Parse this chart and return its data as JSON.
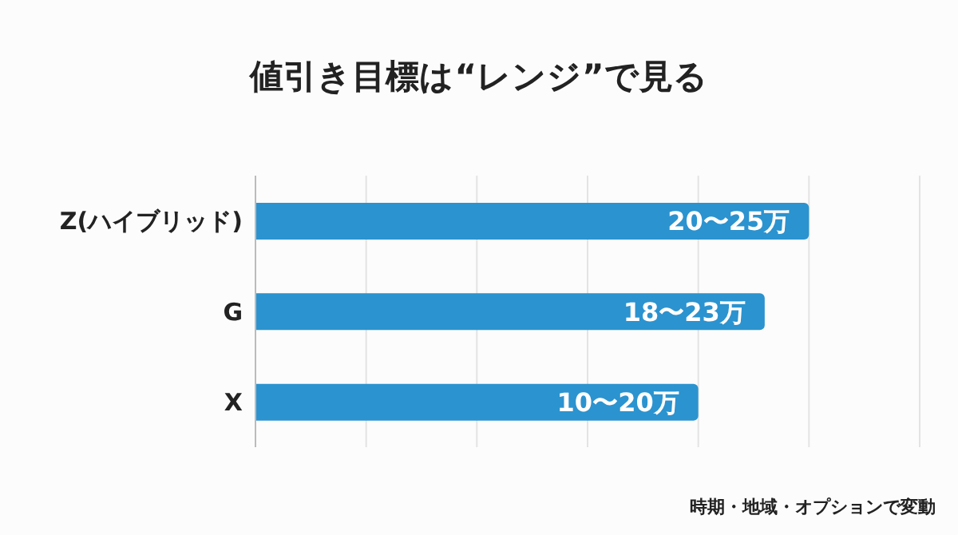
{
  "chart_data": {
    "type": "bar",
    "orientation": "horizontal",
    "title": "値引き目標は“レンジ”で見る",
    "categories": [
      "Z(ハイブリッド)",
      "G",
      "X"
    ],
    "values": [
      25,
      23,
      20
    ],
    "value_labels": [
      "20〜25万",
      "18〜23万",
      "10〜20万"
    ],
    "color": "#2b93cf",
    "grid": "x",
    "annotations": [
      "時期・地域・オプションで変動"
    ]
  }
}
